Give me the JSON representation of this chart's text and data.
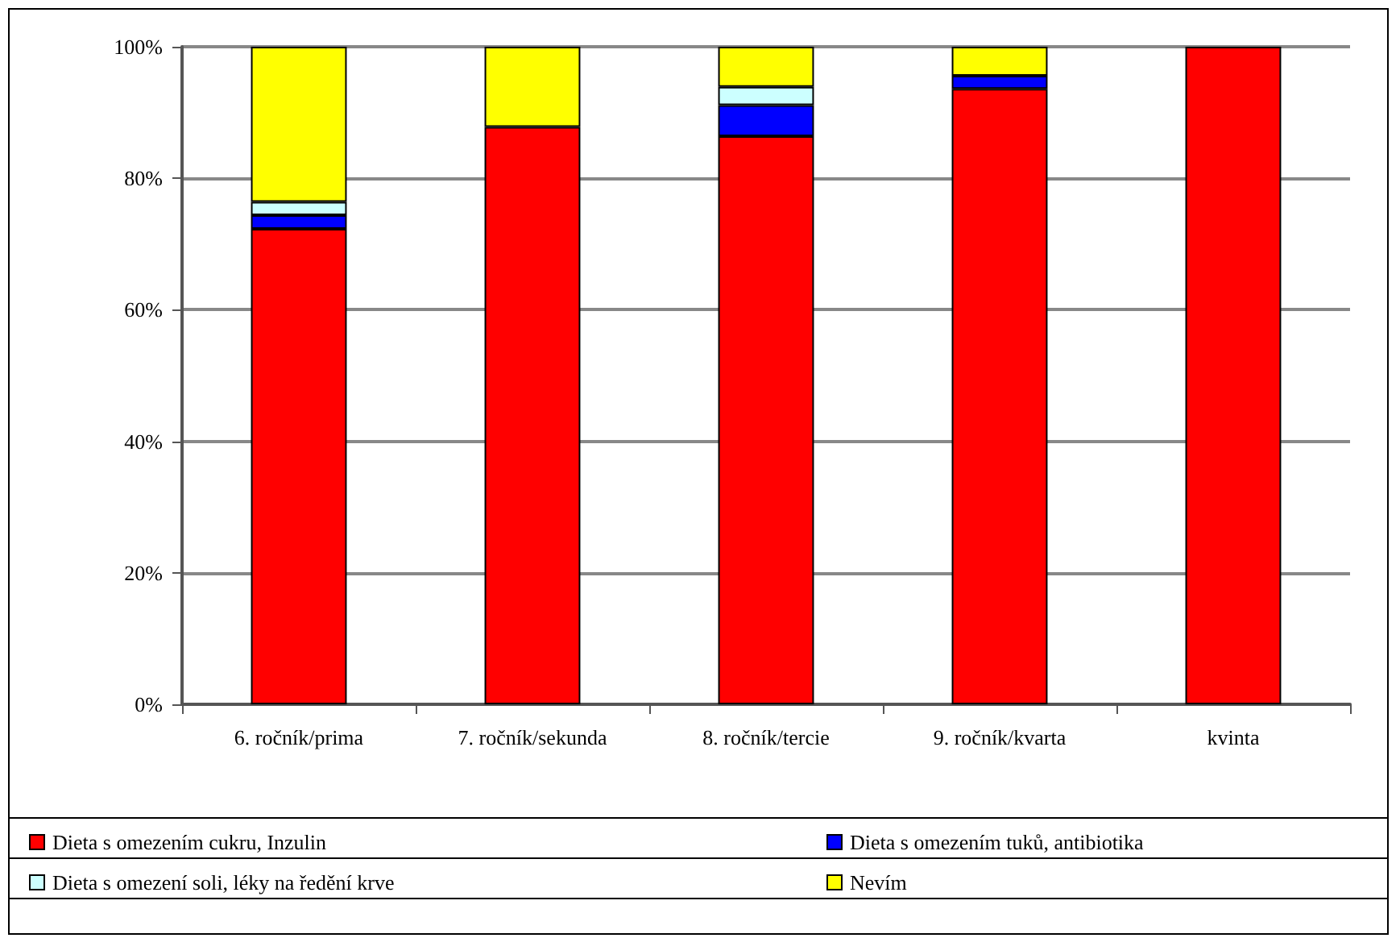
{
  "chart_data": {
    "type": "bar",
    "stacked": true,
    "categories": [
      "6. ročník/prima",
      "7. ročník/sekunda",
      "8. ročník/tercie",
      "9. ročník/kvarta",
      "kvinta"
    ],
    "series": [
      {
        "name": "Dieta s omezením cukru, Inzulin",
        "color": "#ff0000",
        "values": [
          72.3,
          87.8,
          86.4,
          93.6,
          100
        ]
      },
      {
        "name": "Dieta s omezením tuků, antibiotika",
        "color": "#0000ff",
        "values": [
          2.1,
          0,
          4.7,
          2.0,
          0
        ]
      },
      {
        "name": "Dieta s omezení soli, léky na ředění krve",
        "color": "#ccffff",
        "values": [
          2.0,
          0,
          2.8,
          0,
          0
        ]
      },
      {
        "name": "Nevím",
        "color": "#ffff00",
        "values": [
          23.6,
          12.2,
          6.1,
          4.4,
          0
        ]
      }
    ],
    "ylim": [
      0,
      100
    ],
    "yticks": [
      {
        "value": 0,
        "label": "0%"
      },
      {
        "value": 20,
        "label": "20%"
      },
      {
        "value": 40,
        "label": "40%"
      },
      {
        "value": 60,
        "label": "60%"
      },
      {
        "value": 80,
        "label": "80%"
      },
      {
        "value": 100,
        "label": "100%"
      }
    ],
    "grid": "y",
    "legend": "bottom"
  }
}
